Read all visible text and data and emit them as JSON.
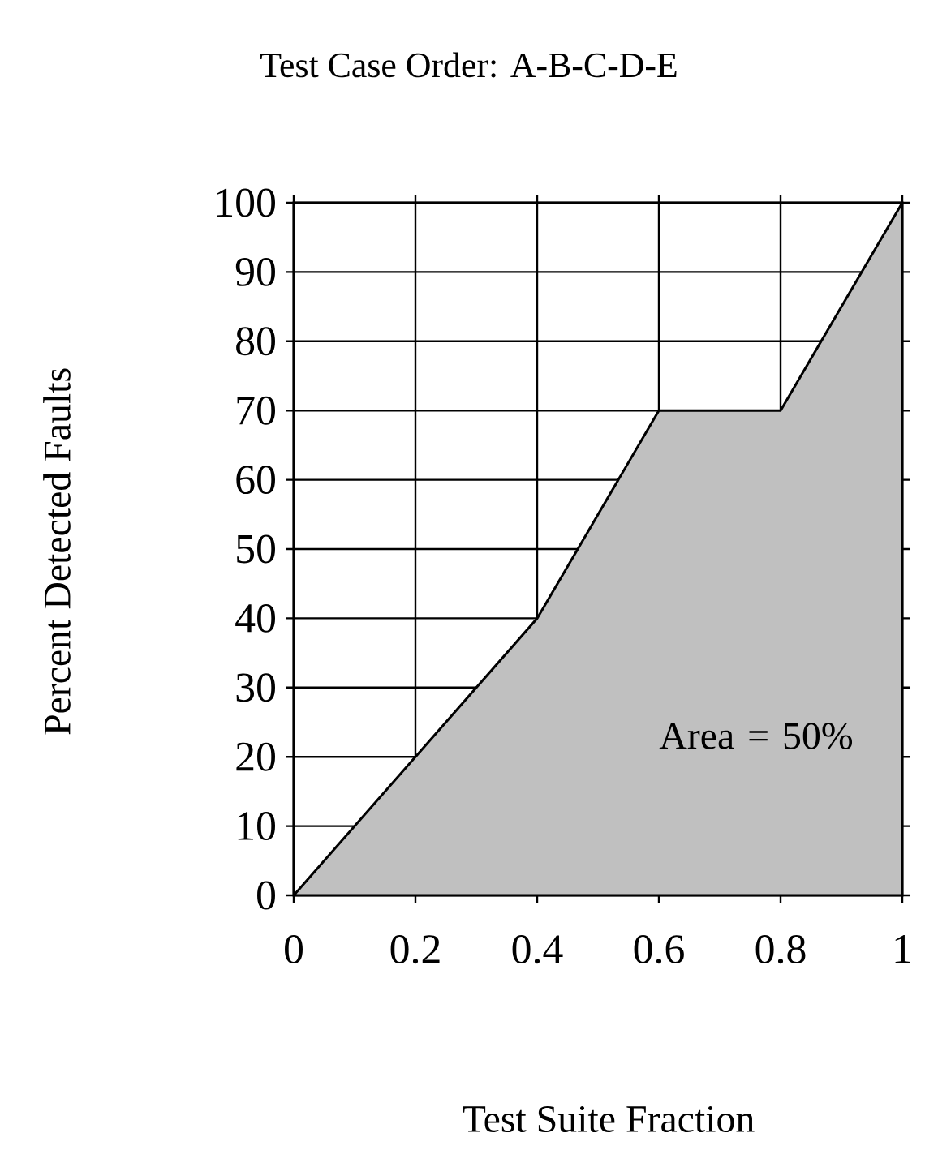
{
  "chart_data": {
    "type": "area",
    "title": "Test Case Order: A-B-C-D-E",
    "xlabel": "Test Suite Fraction",
    "ylabel": "Percent Detected Faults",
    "x": [
      0,
      0.2,
      0.4,
      0.6,
      0.8,
      1
    ],
    "series": [
      {
        "color": "#c0c0c0",
        "values": [
          0,
          20,
          40,
          70,
          70,
          100
        ]
      }
    ],
    "xlim": [
      0,
      1
    ],
    "ylim": [
      0,
      100
    ],
    "xticks": [
      0,
      0.2,
      0.4,
      0.6,
      0.8,
      1
    ],
    "yticks": [
      0,
      10,
      20,
      30,
      40,
      50,
      60,
      70,
      80,
      90,
      100
    ],
    "grid": true,
    "annotations": [
      "Area = 50%"
    ]
  }
}
